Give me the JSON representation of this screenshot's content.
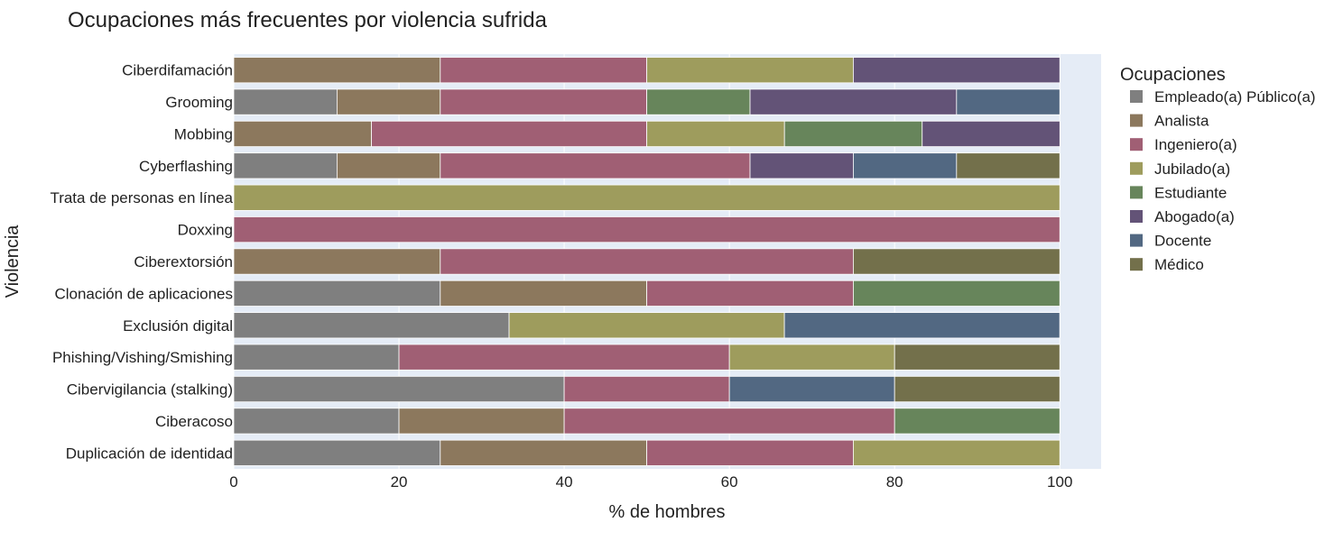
{
  "chart_data": {
    "type": "bar",
    "orientation": "horizontal",
    "stacked": true,
    "title": "Ocupaciones más frecuentes por violencia sufrida",
    "xlabel": "% de hombres",
    "ylabel": "Violencia",
    "xlim": [
      0,
      105
    ],
    "xticks": [
      0,
      20,
      40,
      60,
      80,
      100
    ],
    "legend_title": "Ocupaciones",
    "legend_position": "right",
    "grid": true,
    "categories": [
      "Ciberdifamación",
      "Grooming",
      "Mobbing",
      "Cyberflashing",
      "Trata de personas en línea",
      "Doxxing",
      "Ciberextorsión",
      "Clonación de aplicaciones",
      "Exclusión digital",
      "Phishing/Vishing/Smishing",
      "Cibervigilancia (stalking)",
      "Ciberacoso",
      "Duplicación de identidad"
    ],
    "series": [
      {
        "name": "Empleado(a) Público(a)",
        "color": "#7f7f7f",
        "values": [
          0,
          12.5,
          0,
          12.5,
          0,
          0,
          0,
          25,
          33.33,
          20,
          40,
          20,
          25
        ]
      },
      {
        "name": "Analista",
        "color": "#8c785d",
        "values": [
          25,
          12.5,
          16.67,
          12.5,
          0,
          0,
          25,
          25,
          0,
          0,
          0,
          20,
          25
        ]
      },
      {
        "name": "Ingeniero(a)",
        "color": "#a05f74",
        "values": [
          25,
          25,
          33.33,
          37.5,
          0,
          100,
          50,
          25,
          0,
          40,
          20,
          40,
          25
        ]
      },
      {
        "name": "Jubilado(a)",
        "color": "#9e9c5d",
        "values": [
          25,
          0,
          16.67,
          0,
          100,
          0,
          0,
          0,
          33.33,
          20,
          0,
          0,
          25
        ]
      },
      {
        "name": "Estudiante",
        "color": "#67855b",
        "values": [
          0,
          12.5,
          16.67,
          0,
          0,
          0,
          0,
          25,
          0,
          0,
          0,
          20,
          0
        ]
      },
      {
        "name": "Abogado(a)",
        "color": "#635377",
        "values": [
          25,
          25,
          16.67,
          12.5,
          0,
          0,
          0,
          0,
          0,
          0,
          0,
          0,
          0
        ]
      },
      {
        "name": "Docente",
        "color": "#526882",
        "values": [
          0,
          12.5,
          0,
          12.5,
          0,
          0,
          0,
          0,
          33.33,
          0,
          20,
          0,
          0
        ]
      },
      {
        "name": "Médico",
        "color": "#73704b",
        "values": [
          0,
          0,
          0,
          12.5,
          0,
          0,
          25,
          0,
          0,
          20,
          20,
          0,
          0
        ]
      }
    ]
  },
  "colors": {
    "plot_background": "#e5ecf6",
    "grid": "#ffffff"
  }
}
